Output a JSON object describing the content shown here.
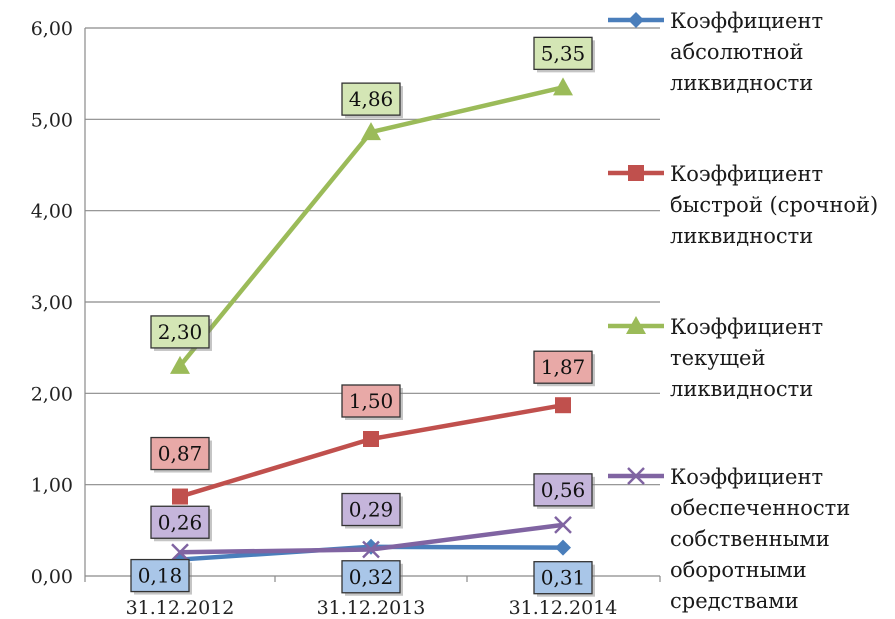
{
  "chart_data": {
    "type": "line",
    "categories": [
      "31.12.2012",
      "31.12.2013",
      "31.12.2014"
    ],
    "ylim": [
      0,
      6
    ],
    "yticks": [
      "0,00",
      "1,00",
      "2,00",
      "3,00",
      "4,00",
      "5,00",
      "6,00"
    ],
    "grid": true,
    "legend_position": "right",
    "series": [
      {
        "name": "Коэффициент абсолютной ликвидности",
        "legend_lines": [
          "Коэффициент",
          "абсолютной",
          "ликвидности"
        ],
        "values": [
          0.18,
          0.32,
          0.31
        ],
        "labels": [
          "0,18",
          "0,32",
          "0,31"
        ],
        "color": "#4a7ebb",
        "label_fill": "#a9c6e8",
        "marker": "diamond"
      },
      {
        "name": "Коэффициент быстрой (срочной) ликвидности",
        "legend_lines": [
          "Коэффициент",
          "быстрой (срочной)",
          "ликвидности"
        ],
        "values": [
          0.87,
          1.5,
          1.87
        ],
        "labels": [
          "0,87",
          "1,50",
          "1,87"
        ],
        "color": "#c0504d",
        "label_fill": "#e8a9a7",
        "marker": "square"
      },
      {
        "name": "Коэффициент текущей ликвидности",
        "legend_lines": [
          "Коэффициент",
          "текущей",
          "ликвидности"
        ],
        "values": [
          2.3,
          4.86,
          5.35
        ],
        "labels": [
          "2,30",
          "4,86",
          "5,35"
        ],
        "color": "#9bbb59",
        "label_fill": "#d4e6b5",
        "marker": "triangle"
      },
      {
        "name": "Коэффициент обеспеченности собственными оборотными средствами",
        "legend_lines": [
          "Коэффициент",
          "обеспеченности",
          "собственными",
          "оборотными",
          "средствами"
        ],
        "values": [
          0.26,
          0.29,
          0.56
        ],
        "labels": [
          "0,26",
          "0,29",
          "0,56"
        ],
        "color": "#8064a2",
        "label_fill": "#c5b5db",
        "marker": "x"
      }
    ]
  }
}
